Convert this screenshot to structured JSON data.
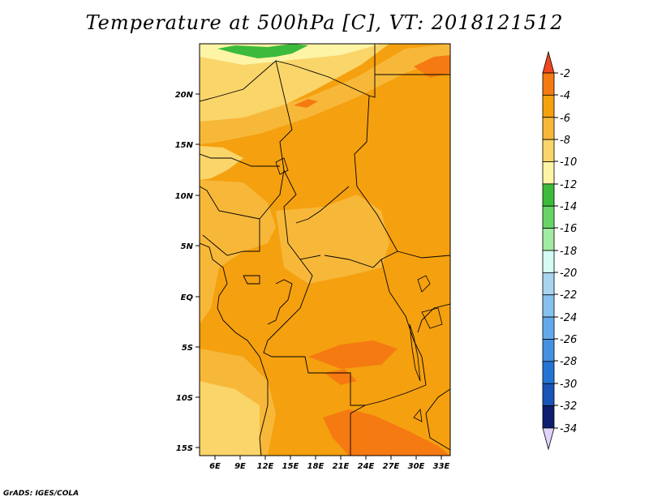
{
  "title": "Temperature at 500hPa [C], VT: 2018121512",
  "credit": "GrADS: IGES/COLA",
  "lat_labels": [
    "20N",
    "15N",
    "10N",
    "5N",
    "EQ",
    "5S",
    "10S",
    "15S"
  ],
  "lon_labels": [
    "6E",
    "9E",
    "12E",
    "15E",
    "18E",
    "21E",
    "24E",
    "27E",
    "30E",
    "33E"
  ],
  "colorbar": {
    "labels": [
      "-2",
      "-4",
      "-6",
      "-8",
      "-10",
      "-12",
      "-14",
      "-16",
      "-18",
      "-20",
      "-22",
      "-24",
      "-26",
      "-28",
      "-30",
      "-32",
      "-34"
    ],
    "colors": [
      "#f04e1e",
      "#f57a12",
      "#f5a00f",
      "#f7b83a",
      "#fad56a",
      "#fdf4a6",
      "#3cba3c",
      "#68d468",
      "#a2eba2",
      "#d6fbf4",
      "#a8d4f0",
      "#86c0ee",
      "#64aaea",
      "#4690e2",
      "#2474d6",
      "#1a54b6",
      "#0e1e6e"
    ],
    "over_color": "#f0461e",
    "under_color": "#e0d4fc"
  },
  "map_colors": {
    "m10": "#fad56a",
    "m8": "#f7b83a",
    "m6": "#f5a00f",
    "m4": "#f57a12",
    "m12": "#fdf4a6",
    "m14": "#3cba3c"
  }
}
